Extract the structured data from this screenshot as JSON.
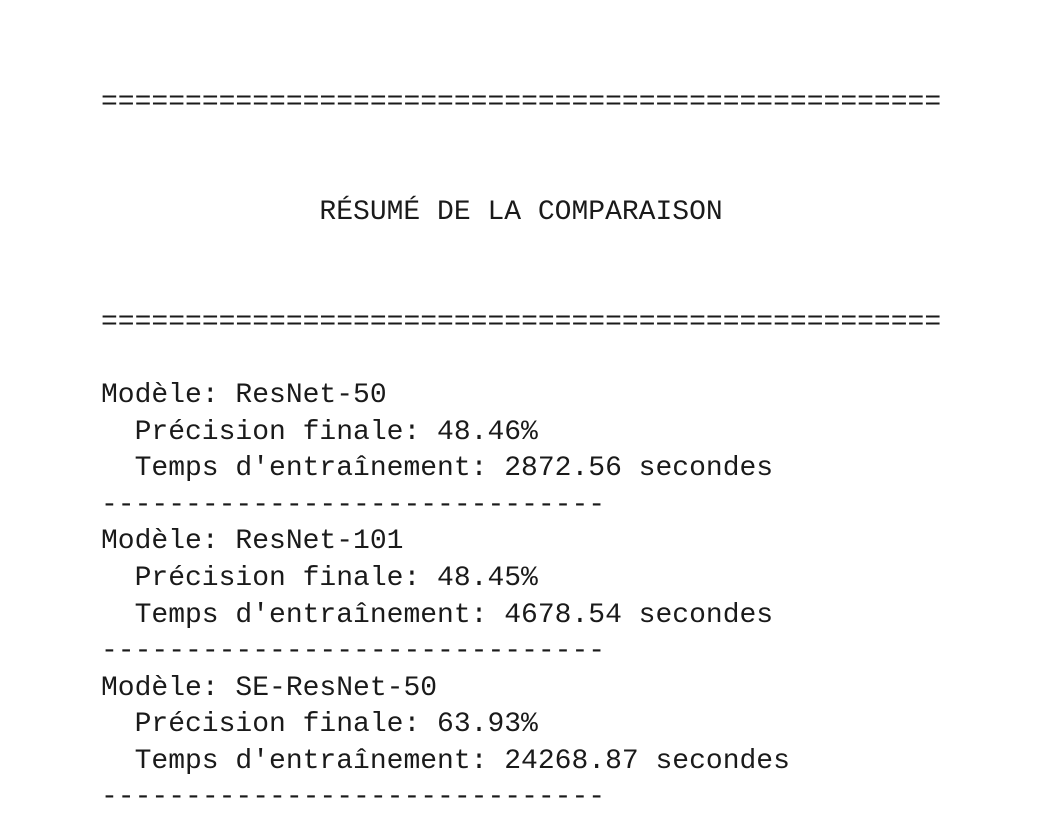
{
  "rule_heavy": "==================================================",
  "title": "RÉSUMÉ DE LA COMPARAISON",
  "models": [
    {
      "name": "Modèle: ResNet-50",
      "precision": "Précision finale: 48.46%",
      "time": "Temps d'entraînement: 2872.56 secondes",
      "rule": "------------------------------"
    },
    {
      "name": "Modèle: ResNet-101",
      "precision": "Précision finale: 48.45%",
      "time": "Temps d'entraînement: 4678.54 secondes",
      "rule": "------------------------------"
    },
    {
      "name": "Modèle: SE-ResNet-50",
      "precision": "Précision finale: 63.93%",
      "time": "Temps d'entraînement: 24268.87 secondes",
      "rule": "------------------------------"
    }
  ]
}
